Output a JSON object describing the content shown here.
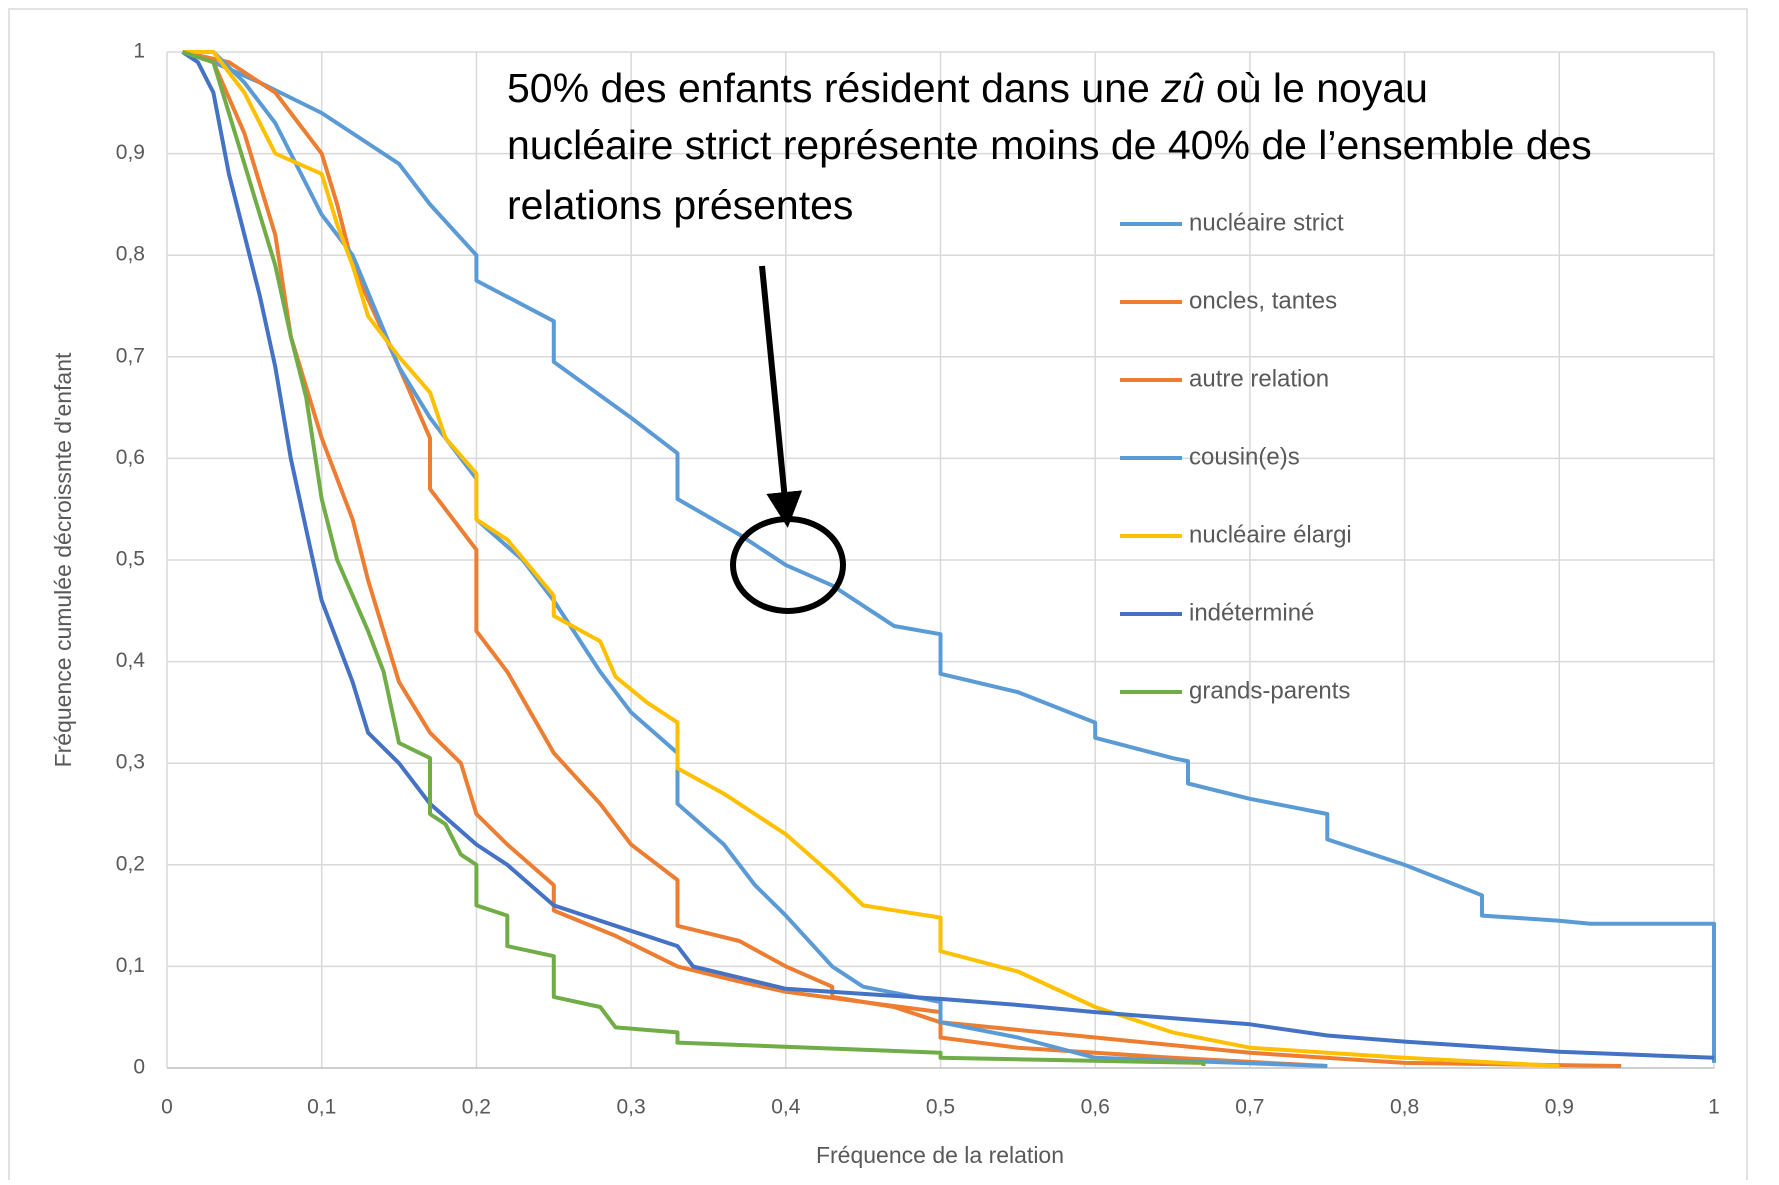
{
  "chart_data": {
    "type": "line",
    "annotation_lines": [
      [
        "50% des enfants résident dans une ",
        "zû",
        " où le noyau"
      ],
      [
        "nucléaire strict représente moins de 40% de l’ensemble des"
      ],
      [
        "relations présentes"
      ]
    ],
    "xlabel": "Fréquence de la relation",
    "ylabel": "Fréquence cumulée décroissnte d'enfant",
    "xlim": [
      0,
      1
    ],
    "ylim": [
      0,
      1
    ],
    "xticks": [
      0,
      {
        "value": 0.1,
        "label": "0,1"
      },
      {
        "value": 0.2,
        "label": "0,2"
      },
      {
        "value": 0.3,
        "label": "0,3"
      },
      {
        "value": 0.4,
        "label": "0,4"
      },
      {
        "value": 0.5,
        "label": "0,5"
      },
      {
        "value": 0.6,
        "label": "0,6"
      },
      {
        "value": 0.7,
        "label": "0,7"
      },
      {
        "value": 0.8,
        "label": "0,8"
      },
      {
        "value": 0.9,
        "label": "0,9"
      },
      1
    ],
    "yticks": [
      0,
      {
        "value": 0.1,
        "label": "0,1"
      },
      {
        "value": 0.2,
        "label": "0,2"
      },
      {
        "value": 0.3,
        "label": "0,3"
      },
      {
        "value": 0.4,
        "label": "0,4"
      },
      {
        "value": 0.5,
        "label": "0,5"
      },
      {
        "value": 0.6,
        "label": "0,6"
      },
      {
        "value": 0.7,
        "label": "0,7"
      },
      {
        "value": 0.8,
        "label": "0,8"
      },
      {
        "value": 0.9,
        "label": "0,9"
      },
      1
    ],
    "grid": true,
    "legend": "right",
    "series": [
      {
        "name": "nucléaire strict",
        "color": "#5b9bd5",
        "x": [
          0.01,
          0.03,
          0.06,
          0.1,
          0.15,
          0.17,
          0.2,
          0.2,
          0.25,
          0.25,
          0.3,
          0.33,
          0.33,
          0.37,
          0.4,
          0.43,
          0.47,
          0.5,
          0.5,
          0.55,
          0.6,
          0.6,
          0.65,
          0.66,
          0.66,
          0.7,
          0.75,
          0.75,
          0.8,
          0.85,
          0.85,
          0.9,
          0.92,
          1,
          1
        ],
        "values": [
          1,
          0.99,
          0.97,
          0.94,
          0.89,
          0.85,
          0.8,
          0.775,
          0.735,
          0.695,
          0.64,
          0.605,
          0.56,
          0.525,
          0.495,
          0.475,
          0.435,
          0.427,
          0.388,
          0.37,
          0.34,
          0.325,
          0.305,
          0.302,
          0.28,
          0.265,
          0.25,
          0.225,
          0.2,
          0.17,
          0.15,
          0.145,
          0.142,
          0.142,
          0.005
        ]
      },
      {
        "name": "oncles, tantes",
        "color": "#ed7d31",
        "x": [
          0.01,
          0.04,
          0.07,
          0.1,
          0.11,
          0.12,
          0.15,
          0.17,
          0.17,
          0.2,
          0.2,
          0.22,
          0.25,
          0.28,
          0.3,
          0.33,
          0.33,
          0.37,
          0.4,
          0.43,
          0.43,
          0.47,
          0.5,
          0.5,
          0.55,
          0.65,
          0.75
        ],
        "values": [
          1,
          0.99,
          0.96,
          0.9,
          0.85,
          0.79,
          0.69,
          0.62,
          0.57,
          0.51,
          0.43,
          0.39,
          0.31,
          0.26,
          0.22,
          0.185,
          0.14,
          0.125,
          0.1,
          0.08,
          0.07,
          0.06,
          0.045,
          0.03,
          0.02,
          0.01,
          0.002
        ]
      },
      {
        "name": "autre relation",
        "color": "#ed7d31",
        "x": [
          0.01,
          0.03,
          0.05,
          0.07,
          0.08,
          0.1,
          0.12,
          0.13,
          0.15,
          0.17,
          0.19,
          0.2,
          0.22,
          0.25,
          0.25,
          0.29,
          0.33,
          0.37,
          0.4,
          0.45,
          0.5,
          0.5,
          0.6,
          0.7,
          0.8,
          0.94
        ],
        "values": [
          1,
          0.99,
          0.92,
          0.82,
          0.72,
          0.62,
          0.54,
          0.48,
          0.38,
          0.33,
          0.3,
          0.25,
          0.22,
          0.18,
          0.155,
          0.13,
          0.1,
          0.085,
          0.075,
          0.065,
          0.055,
          0.045,
          0.03,
          0.015,
          0.005,
          0.002
        ]
      },
      {
        "name": "cousin(e)s",
        "color": "#5b9bd5",
        "x": [
          0.01,
          0.03,
          0.05,
          0.07,
          0.1,
          0.12,
          0.15,
          0.17,
          0.2,
          0.2,
          0.23,
          0.25,
          0.28,
          0.3,
          0.33,
          0.33,
          0.36,
          0.38,
          0.4,
          0.43,
          0.45,
          0.5,
          0.5,
          0.55,
          0.6,
          0.75
        ],
        "values": [
          1,
          1,
          0.97,
          0.93,
          0.84,
          0.8,
          0.69,
          0.64,
          0.58,
          0.54,
          0.5,
          0.46,
          0.39,
          0.35,
          0.31,
          0.26,
          0.22,
          0.18,
          0.15,
          0.1,
          0.08,
          0.065,
          0.045,
          0.03,
          0.01,
          0.002
        ]
      },
      {
        "name": "nucléaire élargi",
        "color": "#ffc000",
        "x": [
          0.01,
          0.03,
          0.05,
          0.07,
          0.1,
          0.11,
          0.12,
          0.13,
          0.15,
          0.17,
          0.18,
          0.2,
          0.2,
          0.22,
          0.25,
          0.25,
          0.28,
          0.29,
          0.31,
          0.33,
          0.33,
          0.36,
          0.4,
          0.43,
          0.45,
          0.5,
          0.5,
          0.55,
          0.6,
          0.65,
          0.7,
          0.8,
          0.9
        ],
        "values": [
          1,
          1,
          0.96,
          0.9,
          0.88,
          0.83,
          0.79,
          0.74,
          0.7,
          0.665,
          0.62,
          0.585,
          0.54,
          0.52,
          0.465,
          0.445,
          0.42,
          0.385,
          0.36,
          0.34,
          0.295,
          0.27,
          0.23,
          0.19,
          0.16,
          0.148,
          0.115,
          0.095,
          0.06,
          0.035,
          0.02,
          0.01,
          0.002
        ]
      },
      {
        "name": "indéterminé",
        "color": "#4472c4",
        "x": [
          0.01,
          0.02,
          0.03,
          0.04,
          0.05,
          0.06,
          0.07,
          0.08,
          0.09,
          0.1,
          0.11,
          0.12,
          0.13,
          0.15,
          0.17,
          0.2,
          0.22,
          0.25,
          0.29,
          0.33,
          0.34,
          0.4,
          0.5,
          0.55,
          0.6,
          0.7,
          0.75,
          0.8,
          0.9,
          1
        ],
        "values": [
          1,
          0.99,
          0.96,
          0.88,
          0.82,
          0.76,
          0.69,
          0.6,
          0.53,
          0.46,
          0.42,
          0.38,
          0.33,
          0.3,
          0.26,
          0.22,
          0.2,
          0.16,
          0.14,
          0.12,
          0.1,
          0.078,
          0.068,
          0.062,
          0.055,
          0.043,
          0.032,
          0.026,
          0.016,
          0.01
        ]
      },
      {
        "name": "grands-parents",
        "color": "#70ad47",
        "x": [
          0.01,
          0.03,
          0.04,
          0.05,
          0.06,
          0.07,
          0.08,
          0.09,
          0.1,
          0.11,
          0.13,
          0.14,
          0.15,
          0.17,
          0.17,
          0.18,
          0.19,
          0.2,
          0.2,
          0.22,
          0.22,
          0.25,
          0.25,
          0.28,
          0.29,
          0.33,
          0.33,
          0.45,
          0.5,
          0.5,
          0.67,
          0.67
        ],
        "values": [
          1,
          0.99,
          0.94,
          0.89,
          0.84,
          0.79,
          0.72,
          0.66,
          0.56,
          0.5,
          0.43,
          0.39,
          0.32,
          0.305,
          0.25,
          0.24,
          0.21,
          0.2,
          0.16,
          0.15,
          0.12,
          0.11,
          0.07,
          0.06,
          0.04,
          0.035,
          0.025,
          0.018,
          0.015,
          0.01,
          0.005,
          0.002
        ]
      }
    ]
  }
}
